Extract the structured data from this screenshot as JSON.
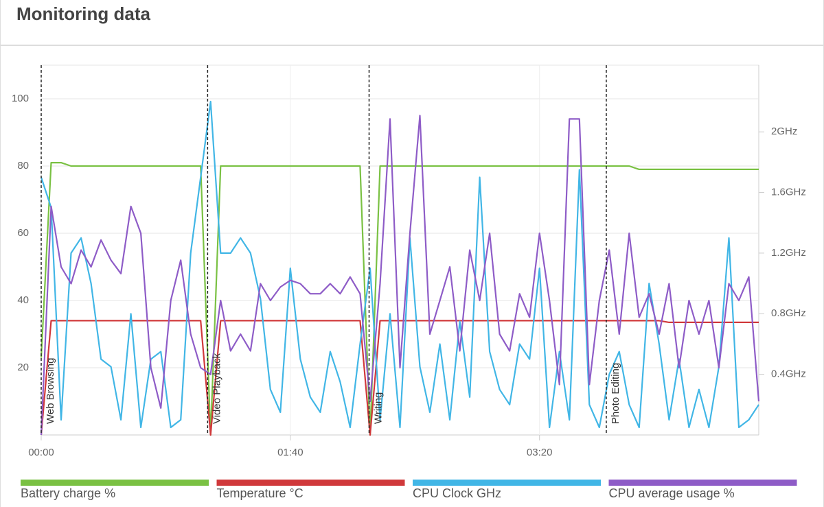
{
  "header": {
    "title": "Monitoring data"
  },
  "chart_data": {
    "type": "line",
    "x": [
      0,
      4,
      8,
      12,
      16,
      20,
      24,
      28,
      32,
      36,
      40,
      44,
      48,
      52,
      56,
      60,
      64,
      68,
      72,
      76,
      80,
      84,
      88,
      92,
      96,
      100,
      104,
      108,
      112,
      116,
      120,
      124,
      128,
      132,
      136,
      140,
      144,
      148,
      152,
      156,
      160,
      164,
      168,
      172,
      176,
      180,
      184,
      188,
      192,
      196,
      200,
      204,
      208,
      212,
      216,
      220,
      224,
      228,
      232,
      236,
      240,
      244,
      248,
      252,
      256,
      260,
      264,
      268,
      272,
      276,
      280,
      284,
      288
    ],
    "xlim": [
      0,
      288
    ],
    "xticks": [
      {
        "value": 0,
        "label": "00:00"
      },
      {
        "value": 100,
        "label": "01:40"
      },
      {
        "value": 200,
        "label": "03:20"
      }
    ],
    "ylim": [
      0,
      110
    ],
    "yticks": [
      20,
      40,
      60,
      80,
      100
    ],
    "y2lim": [
      0,
      2.44
    ],
    "y2ticks": [
      {
        "value": 0.4,
        "label": "0.4GHz"
      },
      {
        "value": 0.8,
        "label": "0.8GHz"
      },
      {
        "value": 1.2,
        "label": "1.2GHz"
      },
      {
        "value": 1.6,
        "label": "1.6GHz"
      },
      {
        "value": 2,
        "label": "2GHz"
      }
    ],
    "grid": true,
    "annotations": [
      {
        "x": 0,
        "label": "Web Browsing"
      },
      {
        "x": 66.8,
        "label": "Video Playback"
      },
      {
        "x": 131.6,
        "label": "Writing"
      },
      {
        "x": 226.8,
        "label": "Photo Editing"
      }
    ],
    "series": [
      {
        "name": "Battery charge %",
        "color": "#7ac143",
        "values": [
          23,
          81,
          81,
          80,
          80,
          80,
          80,
          80,
          80,
          80,
          80,
          80,
          80,
          80,
          80,
          80,
          80,
          0,
          80,
          80,
          80,
          80,
          80,
          80,
          80,
          80,
          80,
          80,
          80,
          80,
          80,
          80,
          80,
          0,
          80,
          80,
          80,
          80,
          80,
          80,
          80,
          80,
          80,
          80,
          80,
          80,
          80,
          80,
          80,
          80,
          80,
          80,
          80,
          80,
          80,
          80,
          80,
          80,
          80,
          80,
          79,
          79,
          79,
          79,
          79,
          79,
          79,
          79,
          79,
          79,
          79,
          79,
          79
        ]
      },
      {
        "name": "Temperature °C",
        "color": "#d0393b",
        "values": [
          0,
          34,
          34,
          34,
          34,
          34,
          34,
          34,
          34,
          34,
          34,
          34,
          34,
          34,
          34,
          34,
          34,
          0,
          34,
          34,
          34,
          34,
          34,
          34,
          34,
          34,
          34,
          34,
          34,
          34,
          34,
          34,
          34,
          0,
          34,
          34,
          34,
          34,
          34,
          34,
          34,
          34,
          34,
          34,
          34,
          34,
          34,
          34,
          34,
          34,
          34,
          34,
          34,
          34,
          34,
          34,
          34,
          34,
          34,
          34,
          34,
          34,
          34,
          33.5,
          33.5,
          33.5,
          33.5,
          33.5,
          33.5,
          33.5,
          33.5,
          33.5,
          33.5
        ]
      },
      {
        "name": "CPU Clock GHz",
        "color": "#41b6e6",
        "axis": "y2",
        "values": [
          1.7,
          1.5,
          0.1,
          1.2,
          1.3,
          1.0,
          0.5,
          0.45,
          0.1,
          0.8,
          0.05,
          0.5,
          0.55,
          0.05,
          0.1,
          1.2,
          1.7,
          2.2,
          1.2,
          1.2,
          1.3,
          1.2,
          0.9,
          0.3,
          0.15,
          1.1,
          0.5,
          0.25,
          0.15,
          0.55,
          0.35,
          0.05,
          0.6,
          1.1,
          0.1,
          0.8,
          0.05,
          1.3,
          0.45,
          0.15,
          0.6,
          0.1,
          0.75,
          0.25,
          1.7,
          0.55,
          0.3,
          0.2,
          0.6,
          0.5,
          1.1,
          0.05,
          0.55,
          0.1,
          1.75,
          0.2,
          0.05,
          0.4,
          0.55,
          0.2,
          0.05,
          1.0,
          0.6,
          0.1,
          0.5,
          0.05,
          0.3,
          0.05,
          0.45,
          1.3,
          0.05,
          0.1,
          0.2
        ]
      },
      {
        "name": "CPU average usage %",
        "color": "#8e5cc7",
        "values": [
          0,
          68,
          50,
          45,
          55,
          50,
          58,
          52,
          48,
          68,
          60,
          20,
          8,
          40,
          52,
          30,
          20,
          18,
          40,
          25,
          30,
          25,
          45,
          40,
          44,
          46,
          45,
          42,
          42,
          45,
          42,
          47,
          42,
          10,
          45,
          94,
          20,
          60,
          95,
          30,
          40,
          50,
          25,
          55,
          40,
          60,
          30,
          25,
          42,
          35,
          60,
          40,
          15,
          94,
          94,
          15,
          40,
          55,
          30,
          60,
          35,
          42,
          30,
          45,
          20,
          40,
          30,
          40,
          20,
          45,
          40,
          47,
          10
        ]
      }
    ]
  }
}
